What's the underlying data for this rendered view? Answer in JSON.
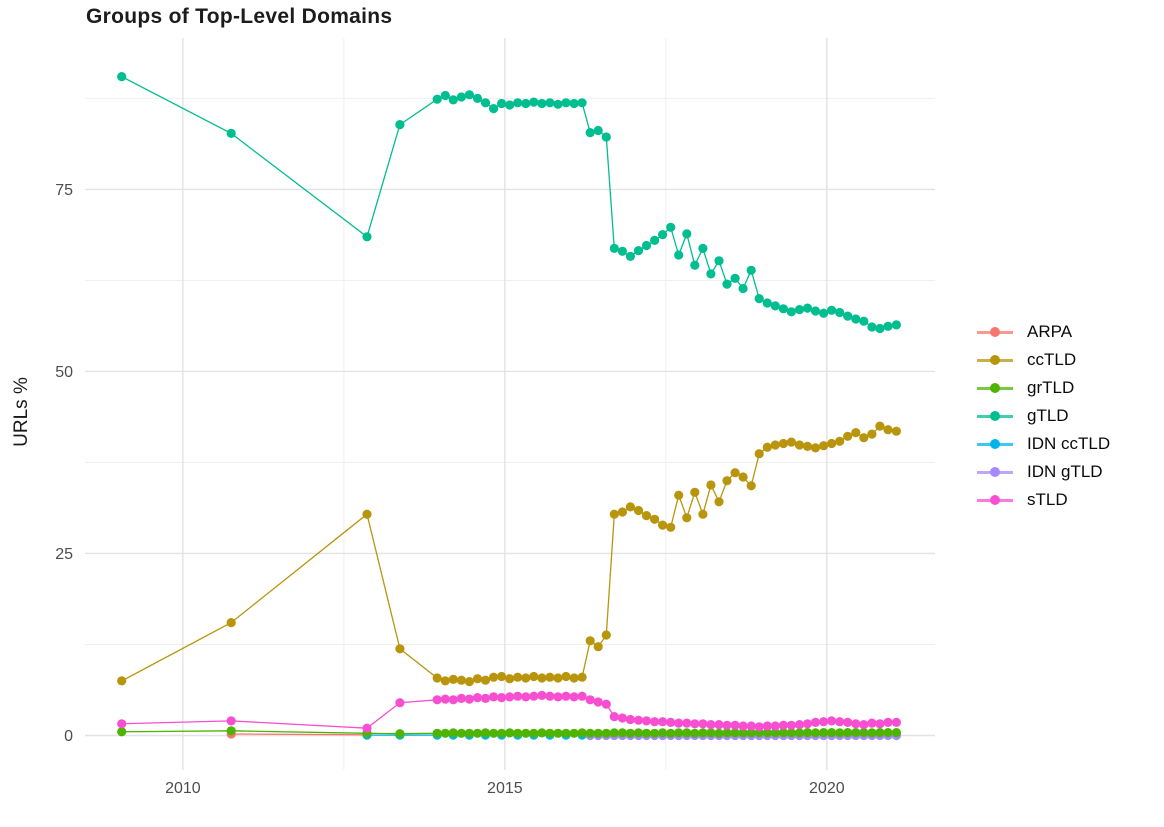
{
  "title": "Groups of Top-Level Domains",
  "chart_data": {
    "type": "line",
    "title": "Groups of Top-Level Domains",
    "xlabel": "",
    "ylabel": "URLs %",
    "grid": "major+minor, light gray, no panel border",
    "legend_position": "right",
    "x_axis": {
      "range": [
        2008.48,
        2021.68
      ],
      "ticks": [
        2010,
        2015,
        2020
      ],
      "tick_labels": [
        "2010",
        "2015",
        "2020"
      ],
      "minor_ticks": [
        2012.5,
        2017.5
      ]
    },
    "y_axis": {
      "range": [
        -4.74,
        95.8
      ],
      "ticks": [
        0,
        25,
        50,
        75
      ],
      "tick_labels": [
        "0",
        "25",
        "50",
        "75"
      ],
      "minor_ticks": [
        12.5,
        37.5,
        62.5,
        87.5
      ]
    },
    "series": [
      {
        "name": "ARPA",
        "color": "#F8766D",
        "x": [
          2010.75,
          2012.86
        ],
        "y": [
          0.2,
          0.1
        ]
      },
      {
        "name": "ccTLD",
        "color": "#B8950C",
        "x": [
          2009.05,
          2010.75,
          2012.86,
          2013.37,
          2013.95,
          2014.075,
          2014.2,
          2014.325,
          2014.45,
          2014.575,
          2014.7,
          2014.825,
          2014.95,
          2015.075,
          2015.2,
          2015.325,
          2015.45,
          2015.575,
          2015.7,
          2015.825,
          2015.95,
          2016.075,
          2016.2,
          2016.325,
          2016.45,
          2016.575,
          2016.7,
          2016.825,
          2016.95,
          2017.075,
          2017.2,
          2017.325,
          2017.45,
          2017.575,
          2017.7,
          2017.825,
          2017.95,
          2018.075,
          2018.2,
          2018.325,
          2018.45,
          2018.575,
          2018.7,
          2018.825,
          2018.95,
          2019.075,
          2019.2,
          2019.325,
          2019.45,
          2019.575,
          2019.7,
          2019.825,
          2019.95,
          2020.075,
          2020.2,
          2020.325,
          2020.45,
          2020.575,
          2020.7,
          2020.825,
          2020.95,
          2021.08
        ],
        "y": [
          7.5,
          15.5,
          30.4,
          11.9,
          7.9,
          7.5,
          7.7,
          7.6,
          7.4,
          7.8,
          7.6,
          8.0,
          8.1,
          7.8,
          8.0,
          7.9,
          8.1,
          7.9,
          8.0,
          7.9,
          8.1,
          7.9,
          8.0,
          13.0,
          12.2,
          13.8,
          30.4,
          30.7,
          31.4,
          30.9,
          30.2,
          29.7,
          28.9,
          28.6,
          33.0,
          29.9,
          33.4,
          30.4,
          34.4,
          32.1,
          35.0,
          36.1,
          35.5,
          34.3,
          38.7,
          39.6,
          39.9,
          40.1,
          40.3,
          39.9,
          39.7,
          39.5,
          39.8,
          40.1,
          40.4,
          41.1,
          41.6,
          40.9,
          41.4,
          42.5,
          42.0,
          41.8
        ]
      },
      {
        "name": "grTLD",
        "color": "#4FB400",
        "x": [
          2009.05,
          2010.75,
          2012.86,
          2013.37,
          2013.95,
          2014.075,
          2014.2,
          2014.325,
          2014.45,
          2014.575,
          2014.7,
          2014.825,
          2014.95,
          2015.075,
          2015.2,
          2015.325,
          2015.45,
          2015.575,
          2015.7,
          2015.825,
          2015.95,
          2016.075,
          2016.2,
          2016.325,
          2016.45,
          2016.575,
          2016.7,
          2016.825,
          2016.95,
          2017.075,
          2017.2,
          2017.325,
          2017.45,
          2017.575,
          2017.7,
          2017.825,
          2017.95,
          2018.075,
          2018.2,
          2018.325,
          2018.45,
          2018.575,
          2018.7,
          2018.825,
          2018.95,
          2019.075,
          2019.2,
          2019.325,
          2019.45,
          2019.575,
          2019.7,
          2019.825,
          2019.95,
          2020.075,
          2020.2,
          2020.325,
          2020.45,
          2020.575,
          2020.7,
          2020.825,
          2020.95,
          2021.08
        ],
        "y": [
          0.5,
          0.65,
          0.3,
          0.25,
          0.3,
          0.3,
          0.35,
          0.3,
          0.3,
          0.3,
          0.35,
          0.3,
          0.3,
          0.35,
          0.3,
          0.3,
          0.3,
          0.35,
          0.3,
          0.3,
          0.3,
          0.3,
          0.35,
          0.3,
          0.3,
          0.3,
          0.35,
          0.35,
          0.3,
          0.35,
          0.3,
          0.3,
          0.35,
          0.3,
          0.35,
          0.35,
          0.3,
          0.35,
          0.35,
          0.3,
          0.35,
          0.35,
          0.35,
          0.35,
          0.4,
          0.35,
          0.35,
          0.4,
          0.35,
          0.35,
          0.4,
          0.35,
          0.4,
          0.4,
          0.35,
          0.4,
          0.4,
          0.4,
          0.35,
          0.4,
          0.4,
          0.4
        ]
      },
      {
        "name": "gTLD",
        "color": "#00BE90",
        "x": [
          2009.05,
          2010.75,
          2012.86,
          2013.37,
          2013.95,
          2014.075,
          2014.2,
          2014.325,
          2014.45,
          2014.575,
          2014.7,
          2014.825,
          2014.95,
          2015.075,
          2015.2,
          2015.325,
          2015.45,
          2015.575,
          2015.7,
          2015.825,
          2015.95,
          2016.075,
          2016.2,
          2016.325,
          2016.45,
          2016.575,
          2016.7,
          2016.825,
          2016.95,
          2017.075,
          2017.2,
          2017.325,
          2017.45,
          2017.575,
          2017.7,
          2017.825,
          2017.95,
          2018.075,
          2018.2,
          2018.325,
          2018.45,
          2018.575,
          2018.7,
          2018.825,
          2018.95,
          2019.075,
          2019.2,
          2019.325,
          2019.45,
          2019.575,
          2019.7,
          2019.825,
          2019.95,
          2020.075,
          2020.2,
          2020.325,
          2020.45,
          2020.575,
          2020.7,
          2020.825,
          2020.95,
          2021.08
        ],
        "y": [
          90.5,
          82.7,
          68.5,
          83.9,
          87.4,
          87.9,
          87.3,
          87.7,
          88.0,
          87.5,
          86.9,
          86.1,
          86.8,
          86.6,
          86.9,
          86.8,
          87.0,
          86.8,
          86.9,
          86.7,
          86.9,
          86.8,
          86.9,
          82.8,
          83.1,
          82.2,
          66.9,
          66.5,
          65.8,
          66.6,
          67.3,
          68.0,
          68.8,
          69.8,
          66.0,
          68.9,
          64.6,
          66.9,
          63.4,
          65.2,
          62.0,
          62.8,
          61.4,
          63.9,
          60.0,
          59.4,
          59.0,
          58.6,
          58.2,
          58.5,
          58.7,
          58.3,
          58.0,
          58.4,
          58.1,
          57.6,
          57.2,
          56.9,
          56.1,
          55.9,
          56.2,
          56.4
        ]
      },
      {
        "name": "IDN ccTLD",
        "color": "#00B4EB",
        "x": [
          2012.86,
          2013.37,
          2013.95,
          2014.2,
          2014.45,
          2014.7,
          2014.95,
          2015.2,
          2015.45,
          2015.7,
          2015.95,
          2016.2,
          2016.45,
          2016.7,
          2016.95,
          2017.2,
          2017.45,
          2017.7,
          2017.95,
          2018.2,
          2018.45,
          2018.7,
          2018.95,
          2019.2,
          2019.45,
          2019.7,
          2019.95,
          2020.2,
          2020.45,
          2020.7,
          2020.95,
          2021.08
        ],
        "y": [
          0.05,
          0.05,
          0.05,
          0.05,
          0.05,
          0.05,
          0.05,
          0.05,
          0.05,
          0.05,
          0.05,
          0.05,
          0.05,
          0.05,
          0.05,
          0.05,
          0.05,
          0.05,
          0.05,
          0.05,
          0.05,
          0.05,
          0.05,
          0.05,
          0.05,
          0.05,
          0.05,
          0.05,
          0.05,
          0.05,
          0.05,
          0.05
        ]
      },
      {
        "name": "IDN gTLD",
        "color": "#A58AFF",
        "x": [
          2016.325,
          2016.45,
          2016.575,
          2016.7,
          2016.825,
          2016.95,
          2017.075,
          2017.2,
          2017.325,
          2017.45,
          2017.575,
          2017.7,
          2017.825,
          2017.95,
          2018.075,
          2018.2,
          2018.325,
          2018.45,
          2018.575,
          2018.7,
          2018.825,
          2018.95,
          2019.075,
          2019.2,
          2019.325,
          2019.45,
          2019.575,
          2019.7,
          2019.825,
          2019.95,
          2020.075,
          2020.2,
          2020.325,
          2020.45,
          2020.575,
          2020.7,
          2020.825,
          2020.95,
          2021.08
        ],
        "y": [
          0.0,
          0.0,
          0.0,
          0.0,
          0.0,
          0.0,
          0.0,
          0.0,
          0.0,
          0.0,
          0.0,
          0.0,
          0.0,
          0.0,
          0.0,
          0.0,
          0.0,
          0.0,
          0.0,
          0.0,
          0.0,
          0.0,
          0.0,
          0.0,
          0.0,
          0.0,
          0.0,
          0.0,
          0.0,
          0.0,
          0.0,
          0.0,
          0.0,
          0.0,
          0.0,
          0.0,
          0.0,
          0.0,
          0.0
        ]
      },
      {
        "name": "sTLD",
        "color": "#F84FD2",
        "x": [
          2009.05,
          2010.75,
          2012.86,
          2013.37,
          2013.95,
          2014.075,
          2014.2,
          2014.325,
          2014.45,
          2014.575,
          2014.7,
          2014.825,
          2014.95,
          2015.075,
          2015.2,
          2015.325,
          2015.45,
          2015.575,
          2015.7,
          2015.825,
          2015.95,
          2016.075,
          2016.2,
          2016.325,
          2016.45,
          2016.575,
          2016.7,
          2016.825,
          2016.95,
          2017.075,
          2017.2,
          2017.325,
          2017.45,
          2017.575,
          2017.7,
          2017.825,
          2017.95,
          2018.075,
          2018.2,
          2018.325,
          2018.45,
          2018.575,
          2018.7,
          2018.825,
          2018.95,
          2019.075,
          2019.2,
          2019.325,
          2019.45,
          2019.575,
          2019.7,
          2019.825,
          2019.95,
          2020.075,
          2020.2,
          2020.325,
          2020.45,
          2020.575,
          2020.7,
          2020.825,
          2020.95,
          2021.08
        ],
        "y": [
          1.6,
          2.0,
          1.0,
          4.5,
          4.9,
          5.0,
          4.9,
          5.1,
          5.0,
          5.2,
          5.1,
          5.3,
          5.2,
          5.3,
          5.4,
          5.3,
          5.4,
          5.5,
          5.4,
          5.3,
          5.4,
          5.3,
          5.4,
          4.9,
          4.6,
          4.3,
          2.6,
          2.4,
          2.2,
          2.1,
          2.0,
          1.9,
          1.9,
          1.8,
          1.7,
          1.7,
          1.6,
          1.6,
          1.5,
          1.5,
          1.4,
          1.4,
          1.3,
          1.3,
          1.2,
          1.3,
          1.3,
          1.4,
          1.4,
          1.5,
          1.6,
          1.8,
          1.9,
          2.0,
          1.9,
          1.8,
          1.6,
          1.5,
          1.7,
          1.6,
          1.8,
          1.8
        ]
      }
    ]
  }
}
